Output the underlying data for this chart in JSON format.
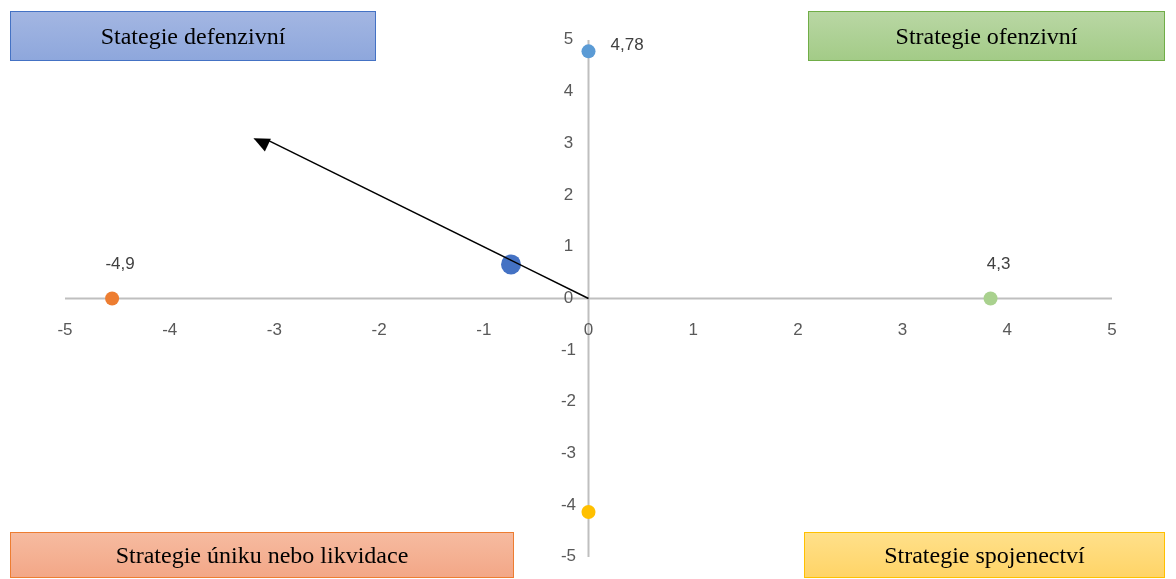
{
  "chart_data": {
    "type": "scatter",
    "annotations": [
      "Stategie defenzivní",
      "Strategie ofenzivní",
      "Strategie úniku nebo likvidace",
      "Strategie spojenectví",
      {
        "text": "-4,9",
        "x": -4.55,
        "y": 0
      },
      {
        "text": "4,3",
        "x": 3.84,
        "y": 0
      }
    ],
    "series": [
      {
        "x": [
          0,
          -4.55,
          3.84,
          0
        ],
        "values": [
          4.78,
          0,
          0,
          -4.13
        ],
        "colors": [
          "#5b9bd5",
          "#ed7d31",
          "#a9d18e",
          "#ffc000"
        ],
        "value_labels": [
          "4,78",
          null,
          null,
          null
        ]
      },
      {
        "x": [
          -0.74
        ],
        "values": [
          0.66
        ],
        "color": "#4472c4"
      }
    ],
    "xlim": [
      -5,
      5
    ],
    "xticks": [
      -5,
      -4,
      -3,
      -2,
      -1,
      0,
      1,
      2,
      3,
      4,
      5
    ],
    "ylim": [
      -5,
      5
    ],
    "yticks": [
      -5,
      -4,
      -3,
      -2,
      -1,
      0,
      1,
      2,
      3,
      4,
      5
    ],
    "marker": "circle"
  }
}
